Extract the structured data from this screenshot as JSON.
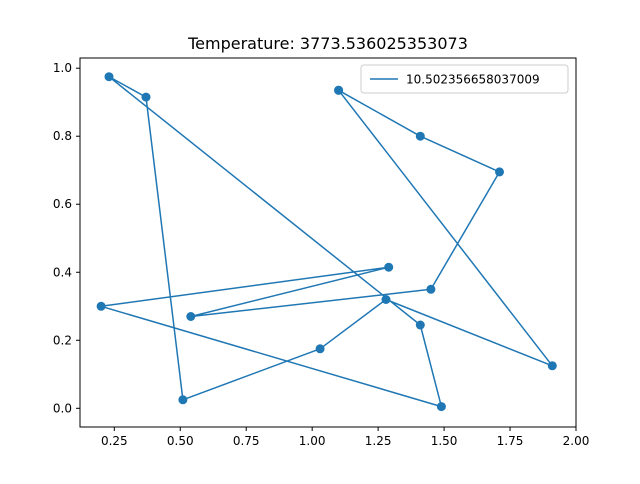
{
  "chart_data": {
    "type": "line",
    "title": "Temperature: 3773.536025353073",
    "xlabel": "",
    "ylabel": "",
    "xlim": [
      0.12,
      2.0
    ],
    "ylim": [
      -0.055,
      1.03
    ],
    "x_ticks": [
      0.25,
      0.5,
      0.75,
      1.0,
      1.25,
      1.5,
      1.75,
      2.0
    ],
    "x_tick_labels": [
      "0.25",
      "0.50",
      "0.75",
      "1.00",
      "1.25",
      "1.50",
      "1.75",
      "2.00"
    ],
    "y_ticks": [
      0.0,
      0.2,
      0.4,
      0.6,
      0.8,
      1.0
    ],
    "y_tick_labels": [
      "0.0",
      "0.2",
      "0.4",
      "0.6",
      "0.8",
      "1.0"
    ],
    "grid": false,
    "legend_position": "top-right",
    "series": [
      {
        "name": "10.502356658037009",
        "color": "#1f77b4",
        "marker": "circle",
        "x": [
          1.1,
          1.41,
          1.71,
          1.45,
          0.54,
          1.29,
          0.2,
          1.49,
          1.41,
          0.23,
          0.37,
          0.51,
          1.03,
          1.28,
          1.91,
          1.1
        ],
        "y": [
          0.935,
          0.8,
          0.695,
          0.35,
          0.27,
          0.415,
          0.3,
          0.005,
          0.245,
          0.975,
          0.915,
          0.025,
          0.175,
          0.32,
          0.125,
          0.935
        ]
      }
    ]
  }
}
